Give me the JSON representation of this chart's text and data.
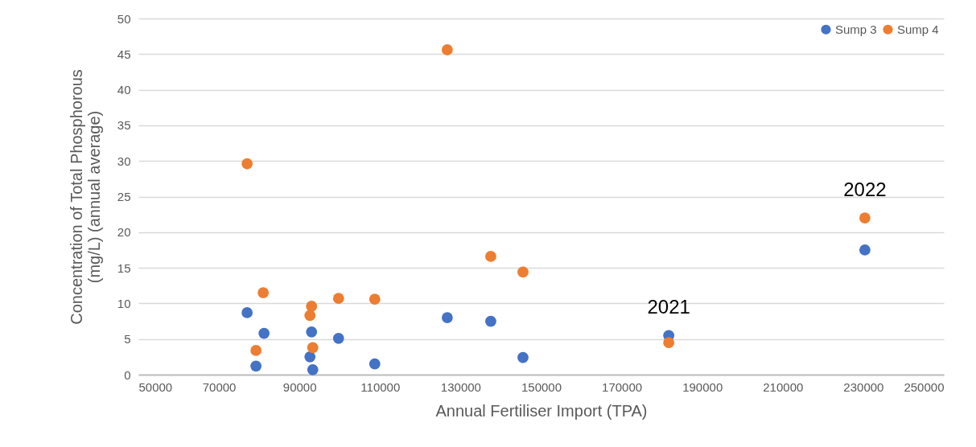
{
  "chart_data": {
    "type": "scatter",
    "xlabel": "Annual Fertiliser Import (TPA)",
    "ylabel": "Concentration of Total Phosphorous\n(mg/L) (annual average)",
    "xlim": [
      50000,
      250000
    ],
    "xticks": [
      50000,
      70000,
      90000,
      110000,
      130000,
      150000,
      170000,
      190000,
      210000,
      230000,
      250000
    ],
    "ylim": [
      0,
      50
    ],
    "yticks": [
      0,
      5,
      10,
      15,
      20,
      25,
      30,
      35,
      40,
      45,
      50
    ],
    "grid": "y",
    "legend": "top right",
    "marker": "circle",
    "series": [
      {
        "name": "Sump 3",
        "color": "#4472c4",
        "x": [
          77000,
          79200,
          81200,
          93000,
          92600,
          93300,
          99700,
          108700,
          126700,
          137500,
          145500,
          181700,
          230400
        ],
        "values": [
          8.7,
          1.2,
          5.8,
          6.0,
          2.5,
          0.7,
          5.1,
          1.5,
          8.0,
          7.5,
          2.4,
          5.5,
          17.5
        ]
      },
      {
        "name": "Sump 4",
        "color": "#ed7d31",
        "x": [
          77000,
          81000,
          79200,
          93000,
          92600,
          93300,
          99700,
          108700,
          126700,
          137500,
          145500,
          181700,
          230400
        ],
        "values": [
          29.6,
          11.5,
          3.4,
          9.6,
          8.3,
          3.8,
          10.7,
          10.6,
          45.6,
          16.6,
          14.4,
          4.5,
          22.0
        ]
      }
    ],
    "annotations": [
      {
        "text": "2021",
        "x": 181700,
        "y": 5.5
      },
      {
        "text": "2022",
        "x": 230400,
        "y": 22.0
      }
    ]
  }
}
